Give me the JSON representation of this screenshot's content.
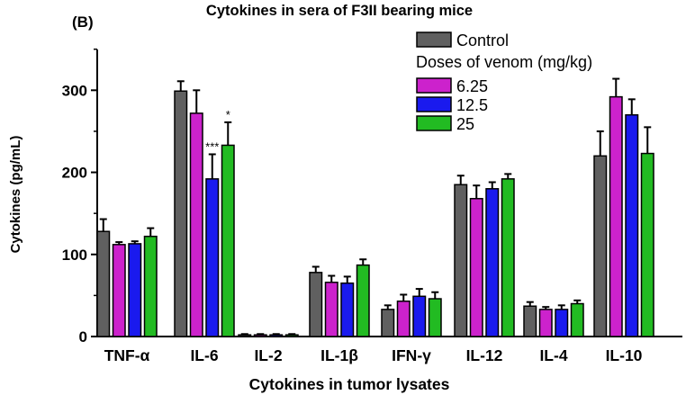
{
  "panel_label": "(B)",
  "chart_data": {
    "type": "bar",
    "title": "Cytokines in sera of F3II bearing mice",
    "xlabel": "Cytokines in tumor lysates",
    "ylabel": "Cytokines (pg/mL)",
    "ylim": [
      0,
      350
    ],
    "yticks": [
      0,
      100,
      200,
      300
    ],
    "grid": false,
    "legend_position": "top-right",
    "legend_subtitle": "Doses of venom (mg/kg)",
    "categories": [
      "TNF-α",
      "IL-6",
      "IL-2",
      "IL-1β",
      "IFN-γ",
      "IL-12",
      "IL-4",
      "IL-10"
    ],
    "series": [
      {
        "name": "Control",
        "color": "#606060",
        "values": [
          128,
          299,
          2,
          78,
          33,
          185,
          37,
          220
        ],
        "errors": [
          15,
          12,
          1,
          7,
          5,
          11,
          5,
          30
        ]
      },
      {
        "name": "6.25",
        "color": "#cc22cc",
        "values": [
          112,
          272,
          2,
          66,
          43,
          168,
          33,
          292
        ],
        "errors": [
          3,
          28,
          1,
          8,
          8,
          16,
          3,
          22
        ]
      },
      {
        "name": "12.5",
        "color": "#1a1aee",
        "values": [
          113,
          192,
          2,
          65,
          49,
          180,
          33,
          270
        ],
        "errors": [
          3,
          30,
          1,
          8,
          9,
          8,
          5,
          19
        ]
      },
      {
        "name": "25",
        "color": "#22bb22",
        "values": [
          122,
          233,
          2,
          87,
          46,
          192,
          40,
          223
        ],
        "errors": [
          10,
          28,
          1,
          7,
          8,
          6,
          4,
          32
        ]
      }
    ],
    "annotations": [
      {
        "text": "***",
        "category": "IL-6",
        "series": "12.5"
      },
      {
        "text": "*",
        "category": "IL-6",
        "series": "25"
      }
    ]
  }
}
